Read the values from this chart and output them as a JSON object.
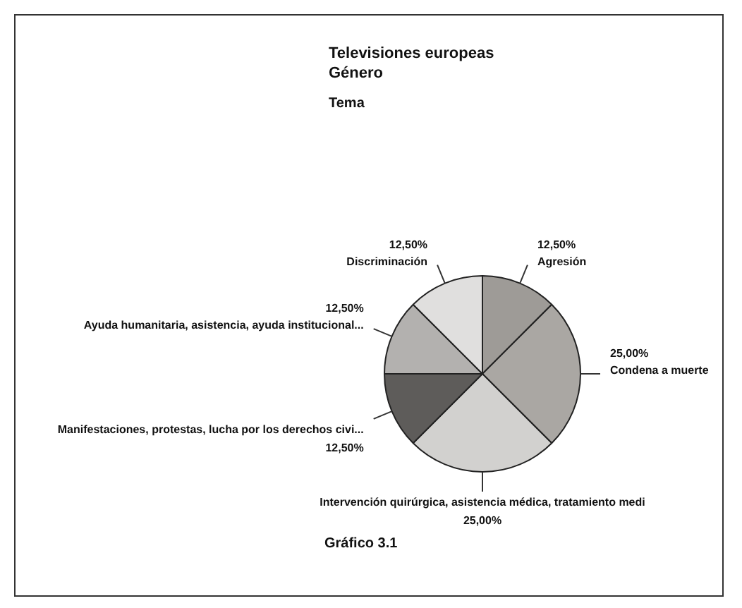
{
  "chart_data": {
    "type": "pie",
    "title": "Televisiones europeas",
    "subtitle": "Género",
    "legend_title": "Tema",
    "categories": [
      "Agresión",
      "Condena a muerte",
      "Intervención quirúrgica, asistencia médica, tratamiento medi",
      "Manifestaciones, protestas, lucha por los derechos civi...",
      "Ayuda humanitaria, asistencia, ayuda institucional...",
      "Discriminación"
    ],
    "values": [
      12.5,
      25,
      25,
      12.5,
      12.5,
      12.5
    ],
    "value_labels": [
      "12,50%",
      "25,00%",
      "25,00%",
      "12,50%",
      "12,50%",
      "12,50%"
    ],
    "colors": [
      "#9e9b97",
      "#aaa7a3",
      "#d2d1cf",
      "#5e5c5a",
      "#b3b1af",
      "#e0dfde"
    ],
    "annotations": [
      "Gráfico 3.1"
    ],
    "legend": false
  }
}
